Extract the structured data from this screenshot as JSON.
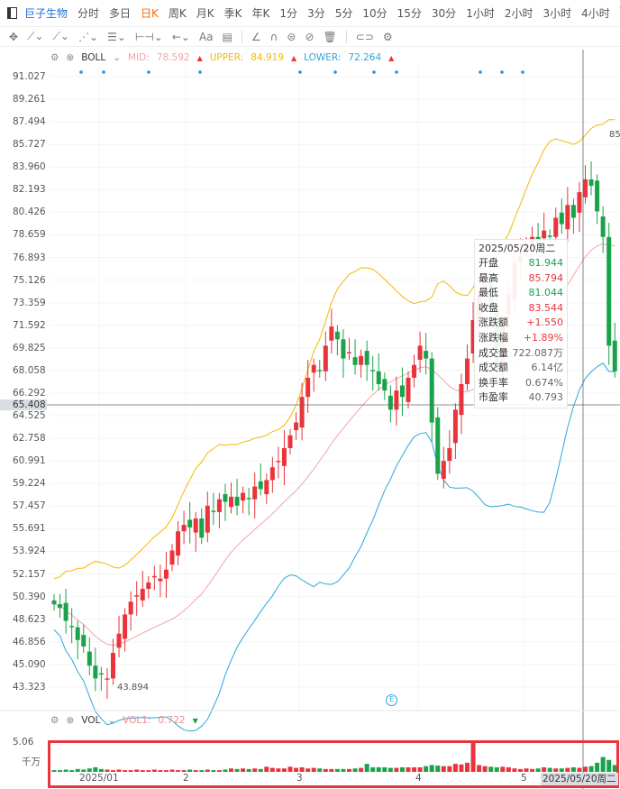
{
  "nav": {
    "stock": "巨子生物",
    "periods": [
      "分时",
      "多日",
      "日K",
      "周K",
      "月K",
      "季K",
      "年K",
      "1分",
      "3分",
      "5分",
      "10分",
      "15分",
      "30分",
      "1小时",
      "2小时",
      "3小时",
      "4小时",
      "Tick"
    ],
    "active": "日K"
  },
  "toolbar": {
    "icons": [
      "move-icon",
      "line-icon",
      "ray-icon",
      "wave-icon",
      "fib-icon",
      "measure-icon",
      "arrow-icon",
      "text-icon",
      "note-icon",
      "angle-icon",
      "magnet-icon",
      "eye-icon",
      "hide-icon",
      "delete-icon",
      "link-icon",
      "settings-icon"
    ],
    "text_label": "Aa"
  },
  "boll": {
    "name": "BOLL",
    "mid_label": "MID:",
    "mid": "78.592",
    "upper_label": "UPPER:",
    "upper": "84.919",
    "lower_label": "LOWER:",
    "lower": "72.264"
  },
  "vol": {
    "name": "VOL",
    "vol1_label": "VOL1:",
    "vol1": "0.722",
    "max_label": "5.06",
    "unit": "千万"
  },
  "colors": {
    "up": "#e8343a",
    "down": "#1aa34a",
    "mid": "#f5a3a8",
    "upper": "#f5b800",
    "lower": "#2aa7dc"
  },
  "price_axis": [
    "91.027",
    "89.261",
    "87.494",
    "85.727",
    "83.960",
    "82.193",
    "80.426",
    "78.659",
    "76.893",
    "75.126",
    "73.359",
    "71.592",
    "69.825",
    "68.058",
    "66.292",
    "64.525",
    "62.758",
    "60.991",
    "59.224",
    "57.457",
    "55.691",
    "53.924",
    "52.157",
    "50.390",
    "48.623",
    "46.856",
    "45.090",
    "43.323"
  ],
  "crosshair": {
    "price": "65.408",
    "date": "2025/05/20周二"
  },
  "low_marker": "43.894",
  "high_marker": "85",
  "x_axis": [
    "2025/01",
    "2",
    "3",
    "4",
    "5"
  ],
  "tooltip": {
    "date": "2025/05/20周二",
    "rows": [
      {
        "k": "开盘",
        "v": "81.944",
        "c": "#1aa34a"
      },
      {
        "k": "最高",
        "v": "85.794",
        "c": "#e8343a"
      },
      {
        "k": "最低",
        "v": "81.044",
        "c": "#1aa34a"
      },
      {
        "k": "收盘",
        "v": "83.544",
        "c": "#e8343a"
      },
      {
        "k": "涨跌额",
        "v": "+1.550",
        "c": "#e8343a"
      },
      {
        "k": "涨跌幅",
        "v": "+1.89%",
        "c": "#e8343a"
      },
      {
        "k": "成交量",
        "v": "722.087万",
        "c": "#666"
      },
      {
        "k": "成交额",
        "v": "6.14亿",
        "c": "#666"
      },
      {
        "k": "换手率",
        "v": "0.674%",
        "c": "#666"
      },
      {
        "k": "市盈率",
        "v": "40.793",
        "c": "#666"
      }
    ]
  },
  "chart_data": {
    "type": "candlestick",
    "ylim": [
      43.323,
      91.027
    ],
    "close": [
      49.8,
      49.5,
      48.5,
      48,
      47,
      46.5,
      45,
      44,
      44.3,
      44,
      46,
      47.5,
      49,
      50,
      50.5,
      51,
      51.5,
      52,
      51.8,
      52.5,
      54,
      55.5,
      56,
      55.8,
      56.5,
      55,
      57.5,
      57,
      58,
      57.8,
      58.2,
      57.5,
      58.5,
      58,
      59,
      58.8,
      59.5,
      60.5,
      61,
      62,
      63,
      64,
      66,
      67.5,
      68.5,
      68,
      70,
      71.5,
      70.5,
      69,
      69.5,
      68.5,
      69.2,
      68.5,
      68,
      67,
      66.5,
      65,
      66.5,
      66,
      67.5,
      68.5,
      70,
      69,
      64,
      60,
      61,
      62,
      65,
      67,
      69,
      72,
      74,
      75,
      73,
      68,
      72,
      74,
      76.5,
      77,
      78,
      78.5,
      78,
      79,
      78.5,
      80,
      79.5,
      81,
      80,
      82,
      83,
      82.5,
      80.5,
      78.5,
      70,
      68
    ],
    "volume": [
      0.3,
      0.3,
      0.4,
      0.3,
      0.5,
      0.4,
      0.6,
      0.8,
      0.5,
      0.4,
      0.3,
      0.4,
      0.3,
      0.3,
      0.4,
      0.3,
      0.3,
      0.4,
      0.3,
      0.3,
      0.4,
      0.3,
      0.3,
      0.4,
      0.3,
      0.3,
      0.4,
      0.3,
      0.3,
      0.4,
      0.6,
      0.5,
      0.6,
      0.5,
      0.6,
      0.5,
      0.9,
      0.7,
      0.6,
      0.6,
      0.9,
      0.7,
      0.8,
      0.6,
      0.7,
      0.6,
      0.5,
      0.5,
      0.5,
      0.5,
      0.5,
      0.6,
      0.7,
      1.4,
      0.8,
      0.8,
      0.8,
      0.7,
      0.7,
      0.8,
      0.8,
      0.8,
      0.8,
      1.0,
      1.2,
      1.1,
      1.0,
      1.0,
      1.4,
      1.3,
      1.6,
      5.06,
      1.2,
      1.0,
      0.9,
      0.8,
      0.9,
      0.8,
      0.6,
      0.5,
      0.6,
      0.5,
      0.6,
      0.8,
      0.7,
      0.6,
      0.6,
      0.7,
      0.8,
      0.7,
      0.9,
      1.0,
      1.6,
      2.6,
      2.1,
      1.2
    ]
  }
}
